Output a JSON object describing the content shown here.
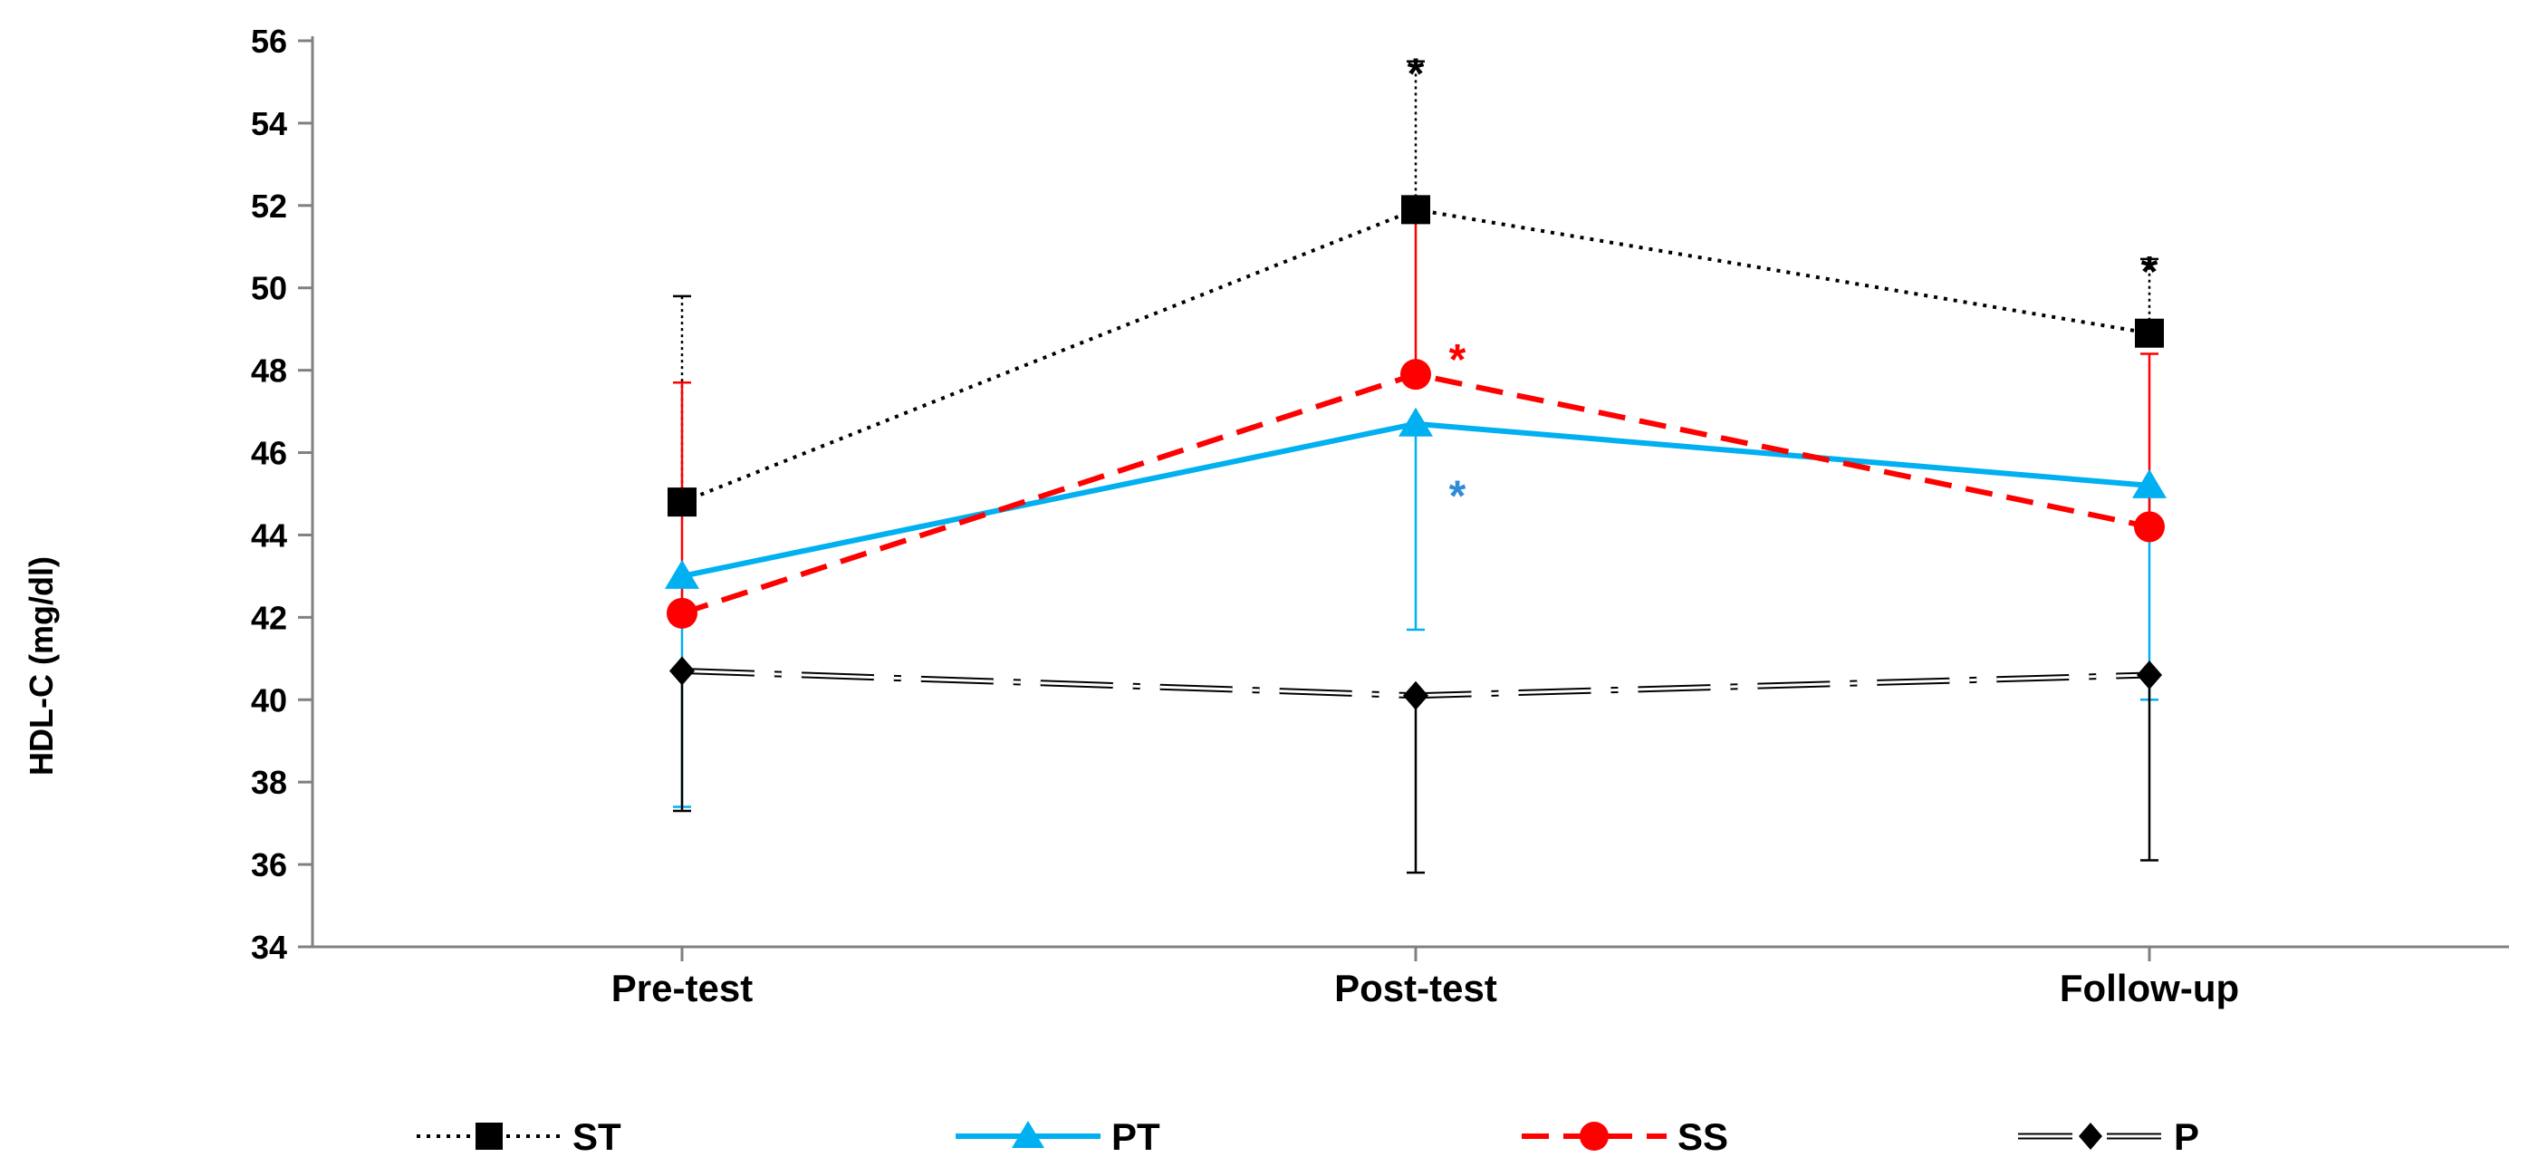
{
  "chart_data": {
    "type": "line",
    "title": "",
    "xlabel": "",
    "ylabel": "HDL-C (mg/dl)",
    "ylim": [
      34,
      56
    ],
    "yticks": [
      34,
      36,
      38,
      40,
      42,
      44,
      46,
      48,
      50,
      52,
      54,
      56
    ],
    "ytick_labels": [
      "34",
      "36",
      "38",
      "40",
      "42",
      "44",
      "46",
      "48",
      "50",
      "52",
      "54",
      "56"
    ],
    "categories": [
      "Pre-test",
      "Post-test",
      "Follow-up"
    ],
    "grid": false,
    "legend_position": "bottom",
    "series": [
      {
        "name": "ST",
        "values": [
          44.8,
          51.9,
          48.9
        ],
        "error_low": [
          null,
          null,
          null
        ],
        "error_high": [
          49.8,
          55.5,
          50.7
        ],
        "color": "#000000",
        "line_style": "dotted",
        "marker": "square",
        "significant": [
          false,
          true,
          true
        ]
      },
      {
        "name": "PT",
        "values": [
          43.0,
          46.7,
          45.2
        ],
        "error_low": [
          37.4,
          41.7,
          40.0
        ],
        "error_high": [
          null,
          null,
          null
        ],
        "color": "#00B0F0",
        "line_style": "solid",
        "marker": "triangle",
        "significant": [
          false,
          true,
          false
        ]
      },
      {
        "name": "SS",
        "values": [
          42.1,
          47.9,
          44.2
        ],
        "error_low": [
          null,
          null,
          null
        ],
        "error_high": [
          47.7,
          51.8,
          48.4
        ],
        "color": "#FF0000",
        "line_style": "dashed",
        "marker": "circle",
        "significant": [
          false,
          true,
          false
        ]
      },
      {
        "name": "P",
        "values": [
          40.7,
          40.1,
          40.6
        ],
        "error_low": [
          37.3,
          35.8,
          36.1
        ],
        "error_high": [
          null,
          null,
          null
        ],
        "color": "#000000",
        "line_style": "long-dash-dot-outline",
        "marker": "diamond",
        "significant": [
          false,
          false,
          false
        ]
      }
    ],
    "annotations": [
      {
        "text": "*",
        "series": "ST",
        "category": "Post-test",
        "color": "#000000"
      },
      {
        "text": "*",
        "series": "ST",
        "category": "Follow-up",
        "color": "#000000"
      },
      {
        "text": "*",
        "series": "SS",
        "category": "Post-test",
        "color": "#FF0000"
      },
      {
        "text": "*",
        "series": "PT",
        "category": "Post-test",
        "color": "#2E8BD8"
      }
    ]
  }
}
